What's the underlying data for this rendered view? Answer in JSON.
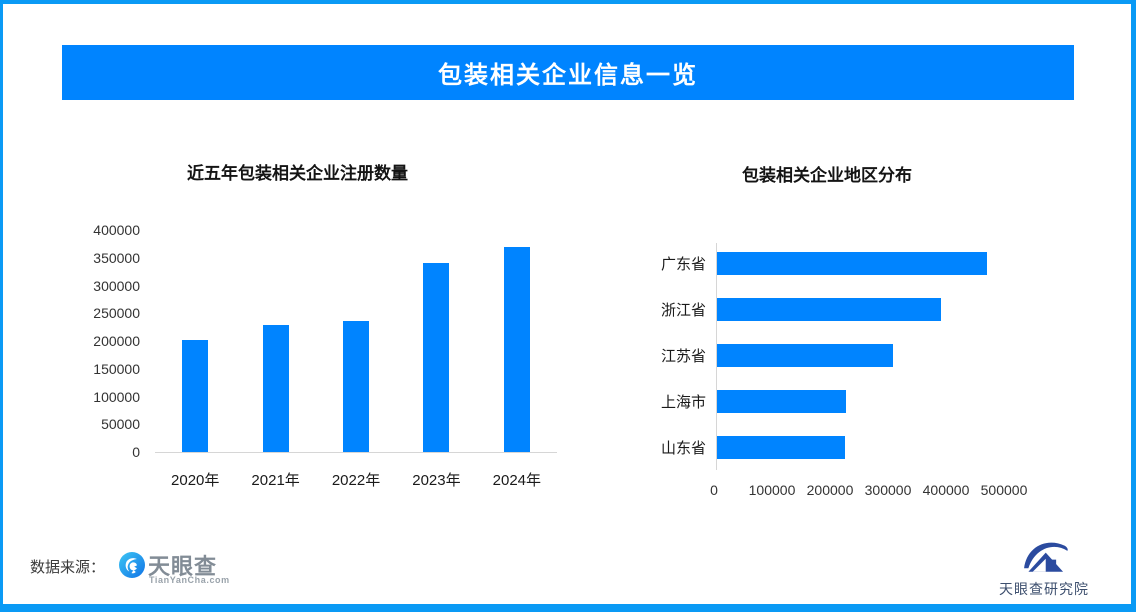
{
  "banner": {
    "title": "包装相关企业信息一览"
  },
  "footer": {
    "source_label": "数据来源：",
    "tianyancha_name": "天眼查",
    "tianyancha_domain": "TianYanCha.com",
    "research_name": "天眼查研究院"
  },
  "colors": {
    "accent_blue": "#0084ff",
    "frame_blue": "#0a9af5",
    "axis_gray": "#d6d6d6",
    "logo_gray": "#828c96",
    "logo_navy": "#2b4b9f"
  },
  "icons": {
    "tianyancha_icon": "tianyancha-swirl-logo",
    "research_icon": "tianyancha-research-swoosh-house-logo"
  },
  "chart_data": [
    {
      "type": "bar",
      "orientation": "vertical",
      "title": "近五年包装相关企业注册数量",
      "categories": [
        "2020年",
        "2021年",
        "2022年",
        "2023年",
        "2024年"
      ],
      "values": [
        202000,
        229000,
        236000,
        341000,
        369000
      ],
      "xlabel": "",
      "ylabel": "",
      "ylim": [
        0,
        400000
      ],
      "yticks": [
        0,
        50000,
        100000,
        150000,
        200000,
        250000,
        300000,
        350000,
        400000
      ],
      "grid": false,
      "bar_color": "#0084ff"
    },
    {
      "type": "bar",
      "orientation": "horizontal",
      "title": "包装相关企业地区分布",
      "categories": [
        "广东省",
        "浙江省",
        "江苏省",
        "上海市",
        "山东省"
      ],
      "values": [
        465000,
        387000,
        303000,
        222000,
        220000
      ],
      "xlabel": "",
      "ylabel": "",
      "xlim": [
        0,
        500000
      ],
      "xticks": [
        0,
        100000,
        200000,
        300000,
        400000,
        500000
      ],
      "grid": false,
      "bar_color": "#0084ff"
    }
  ]
}
